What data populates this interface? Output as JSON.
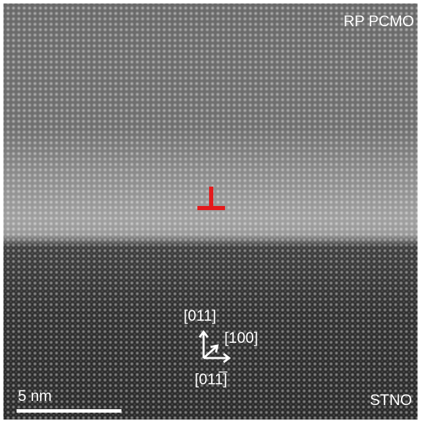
{
  "labels": {
    "top_material": "RP PCMO",
    "bottom_material": "STNO",
    "scale_bar": "5 nm",
    "direction_up": "[011]",
    "direction_diag": "[100]",
    "direction_right": "[011̅]"
  }
}
